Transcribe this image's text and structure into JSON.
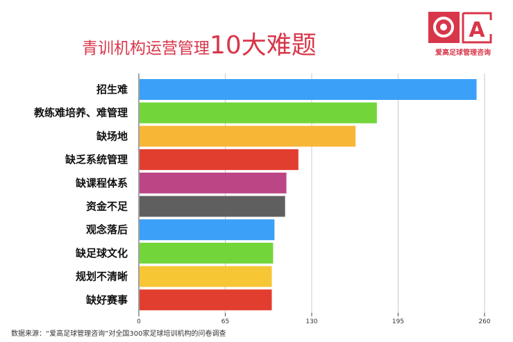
{
  "chart_data": {
    "type": "bar",
    "orientation": "horizontal",
    "title_part1": "青训机构运营管理",
    "title_part2": "10大难题",
    "categories": [
      "招生难",
      "教练难培养、难管理",
      "缺场地",
      "缺乏系统管理",
      "缺课程体系",
      "资金不足",
      "观念落后",
      "缺足球文化",
      "规划不清晰",
      "缺好赛事"
    ],
    "values": [
      254,
      179,
      163,
      120,
      111,
      110,
      102,
      101,
      100,
      100
    ],
    "colors": [
      "#3ba0f7",
      "#72d63a",
      "#f7b636",
      "#e23e2f",
      "#bb4585",
      "#5f5f5f",
      "#3ba0f7",
      "#72d63a",
      "#f7c635",
      "#e23e2f"
    ],
    "xlim": [
      0,
      260
    ],
    "xticks": [
      0,
      65,
      130,
      195,
      260
    ],
    "grid": true,
    "source": "数据来源：“爱高足球管理咨询”对全国300家足球培训机构的问卷调查"
  },
  "logo": {
    "text": "爱高足球管理咨询",
    "letter": "A",
    "color": "#d8364a"
  }
}
